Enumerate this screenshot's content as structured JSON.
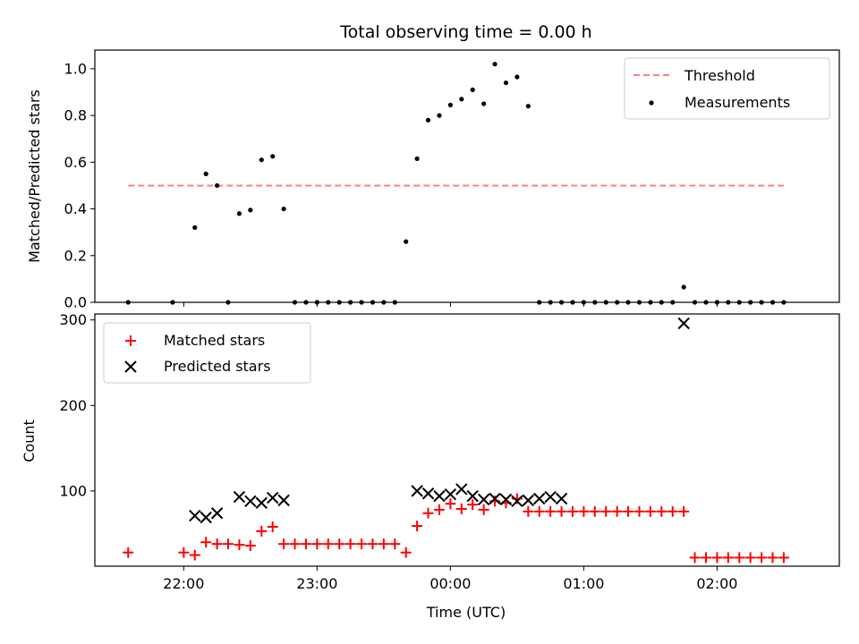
{
  "title": "Total observing time = 0.00 h",
  "colors": {
    "threshold": "#ff7f7f",
    "measurement": "#000000",
    "matched": "#ff0000",
    "predicted": "#000000"
  },
  "chart_data": [
    {
      "type": "scatter",
      "ylabel": "Matched/Predicted stars",
      "ylim": [
        0,
        1.08
      ],
      "yticks": [
        "0.0",
        "0.2",
        "0.4",
        "0.6",
        "0.8",
        "1.0"
      ],
      "legend_placement": "top-right",
      "legend": [
        "Threshold",
        "Measurements"
      ],
      "threshold": {
        "name": "Threshold",
        "value": 0.5,
        "x": [
          "21:35",
          "02:30"
        ]
      },
      "series": [
        {
          "name": "Measurements",
          "x": [
            "21:35",
            "21:55",
            "22:05",
            "22:10",
            "22:15",
            "22:20",
            "22:25",
            "22:30",
            "22:35",
            "22:40",
            "22:45",
            "22:50",
            "22:55",
            "23:00",
            "23:05",
            "23:10",
            "23:15",
            "23:20",
            "23:25",
            "23:30",
            "23:35",
            "23:40",
            "23:45",
            "23:50",
            "23:55",
            "00:00",
            "00:05",
            "00:10",
            "00:15",
            "00:20",
            "00:25",
            "00:30",
            "00:35",
            "00:40",
            "00:45",
            "00:50",
            "00:55",
            "01:00",
            "01:05",
            "01:10",
            "01:15",
            "01:20",
            "01:25",
            "01:30",
            "01:35",
            "01:40",
            "01:45",
            "01:50",
            "01:55",
            "02:00",
            "02:05",
            "02:10",
            "02:15",
            "02:20",
            "02:25",
            "02:30"
          ],
          "values": [
            0,
            0,
            0.32,
            0.55,
            0.5,
            0,
            0.38,
            0.395,
            0.61,
            0.625,
            0.4,
            0,
            0,
            0,
            0,
            0,
            0,
            0,
            0,
            0,
            0,
            0.26,
            0.615,
            0.78,
            0.8,
            0.845,
            0.87,
            0.91,
            0.85,
            1.02,
            0.94,
            0.965,
            0.84,
            0,
            0,
            0,
            0,
            0,
            0,
            0,
            0,
            0,
            0,
            0,
            0,
            0,
            0.065,
            0,
            0,
            0,
            0,
            0,
            0,
            0,
            0,
            0
          ]
        }
      ]
    },
    {
      "type": "scatter",
      "xlabel": "Time (UTC)",
      "ylabel": "Count",
      "ylim": [
        12,
        307
      ],
      "yticks": [
        "100",
        "200",
        "300"
      ],
      "xticks": [
        "22:00",
        "23:00",
        "00:00",
        "01:00",
        "02:00"
      ],
      "xlim": [
        "21:20",
        "02:55"
      ],
      "legend_placement": "top-left",
      "legend": [
        "Matched stars",
        "Predicted stars"
      ],
      "series": [
        {
          "name": "Matched stars",
          "x": [
            "21:35",
            "22:00",
            "22:05",
            "22:10",
            "22:15",
            "22:20",
            "22:25",
            "22:30",
            "22:35",
            "22:40",
            "22:45",
            "22:50",
            "22:55",
            "23:00",
            "23:05",
            "23:10",
            "23:15",
            "23:20",
            "23:25",
            "23:30",
            "23:35",
            "23:40",
            "23:45",
            "23:50",
            "23:55",
            "00:00",
            "00:05",
            "00:10",
            "00:15",
            "00:20",
            "00:25",
            "00:30",
            "00:35",
            "00:40",
            "00:45",
            "00:50",
            "00:55",
            "01:00",
            "01:05",
            "01:10",
            "01:15",
            "01:20",
            "01:25",
            "01:30",
            "01:35",
            "01:40",
            "01:45",
            "01:50",
            "01:55",
            "02:00",
            "02:05",
            "02:10",
            "02:15",
            "02:20",
            "02:25",
            "02:30"
          ],
          "values": [
            28,
            28,
            25,
            40,
            38,
            38,
            37,
            36,
            53,
            58,
            38,
            38,
            38,
            38,
            38,
            38,
            38,
            38,
            38,
            38,
            38,
            28,
            59,
            74,
            78,
            85,
            79,
            84,
            78,
            88,
            86,
            91,
            76,
            76,
            76,
            76,
            76,
            76,
            76,
            76,
            76,
            76,
            76,
            76,
            76,
            76,
            76,
            22,
            22,
            22,
            22,
            22,
            22,
            22,
            22,
            22
          ]
        },
        {
          "name": "Predicted stars",
          "x": [
            "22:05",
            "22:10",
            "22:15",
            "22:25",
            "22:30",
            "22:35",
            "22:40",
            "22:45",
            "23:45",
            "23:50",
            "23:55",
            "00:00",
            "00:05",
            "00:10",
            "00:15",
            "00:20",
            "00:25",
            "00:30",
            "00:35",
            "00:40",
            "00:45",
            "00:50",
            "01:45"
          ],
          "values": [
            71,
            69,
            74,
            93,
            88,
            86,
            92,
            89,
            100,
            97,
            94,
            96,
            102,
            94,
            90,
            91,
            90,
            88,
            89,
            91,
            93,
            91,
            296
          ]
        }
      ]
    }
  ]
}
